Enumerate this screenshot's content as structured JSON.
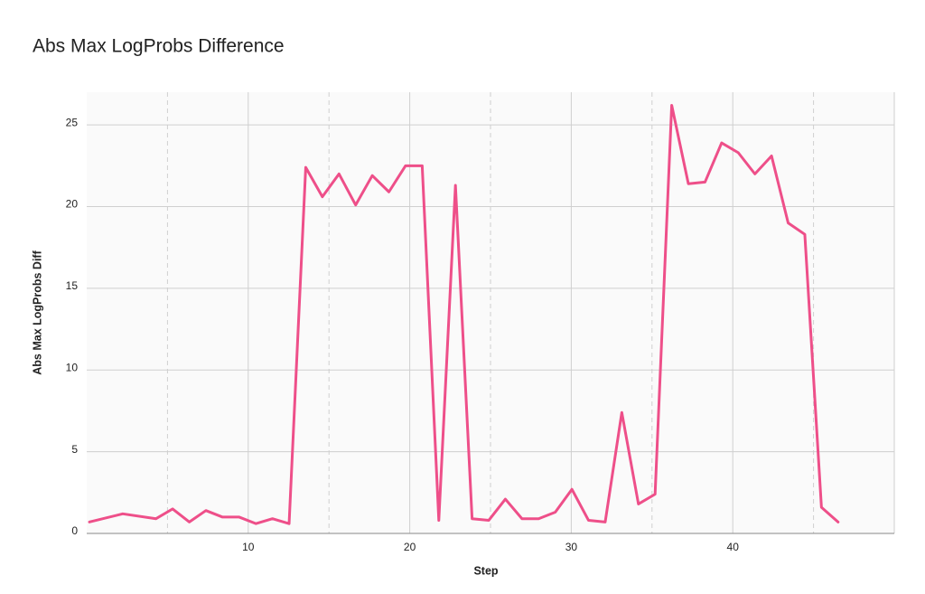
{
  "chart_data": {
    "type": "line",
    "title": "Abs Max LogProbs Difference",
    "x_label": "Step",
    "y_label": "Abs Max LogProbs Diff",
    "x": [
      0.17,
      2.23,
      4.29,
      5.32,
      6.35,
      7.38,
      8.41,
      9.44,
      10.47,
      11.5,
      12.53,
      13.56,
      14.59,
      15.62,
      16.65,
      17.68,
      18.71,
      19.74,
      20.77,
      21.8,
      22.83,
      23.86,
      24.89,
      25.92,
      26.95,
      27.98,
      29.01,
      30.04,
      31.07,
      32.1,
      33.13,
      34.16,
      35.19,
      36.22,
      37.25,
      38.28,
      39.31,
      40.34,
      41.37,
      42.4,
      43.43,
      44.46,
      45.49,
      46.52
    ],
    "values": [
      0.7,
      1.2,
      0.9,
      1.5,
      0.7,
      1.4,
      1.0,
      1.0,
      0.6,
      0.9,
      0.6,
      22.4,
      20.6,
      22.0,
      20.1,
      21.9,
      20.9,
      22.5,
      22.5,
      0.8,
      21.3,
      0.9,
      0.8,
      2.1,
      0.9,
      0.9,
      1.3,
      2.7,
      0.8,
      0.7,
      7.4,
      1.8,
      2.4,
      26.2,
      21.4,
      21.5,
      23.9,
      23.3,
      22.0,
      23.1,
      19.0,
      18.3,
      1.6,
      0.7
    ],
    "color": "#ee4f89",
    "xlim": [
      0,
      50
    ],
    "xticks": [
      10,
      20,
      30,
      40
    ],
    "x_minor_grid": [
      5,
      15,
      25,
      35,
      45
    ],
    "ylim": [
      0,
      27
    ],
    "yticks": [
      0,
      5,
      10,
      15,
      20,
      25
    ],
    "grid": true
  }
}
